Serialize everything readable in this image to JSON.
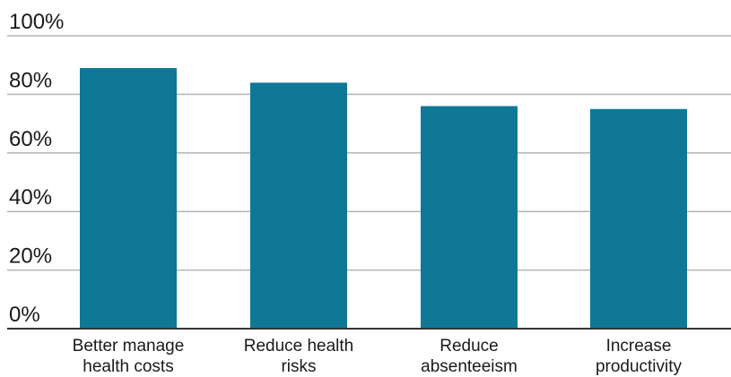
{
  "chart_data": {
    "type": "bar",
    "categories": [
      [
        "Better manage",
        "health costs"
      ],
      [
        "Reduce health",
        "risks"
      ],
      [
        "Reduce",
        "absenteeism"
      ],
      [
        "Increase",
        "productivity"
      ]
    ],
    "values": [
      89,
      84,
      76,
      75
    ],
    "y_ticks": [
      "0%",
      "20%",
      "40%",
      "60%",
      "80%",
      "100%"
    ],
    "ylim": [
      0,
      100
    ],
    "grid": true,
    "bar_color": "#0f7896",
    "grid_color": "#b4b4b4",
    "axis_color": "#333333",
    "legend": "none"
  }
}
